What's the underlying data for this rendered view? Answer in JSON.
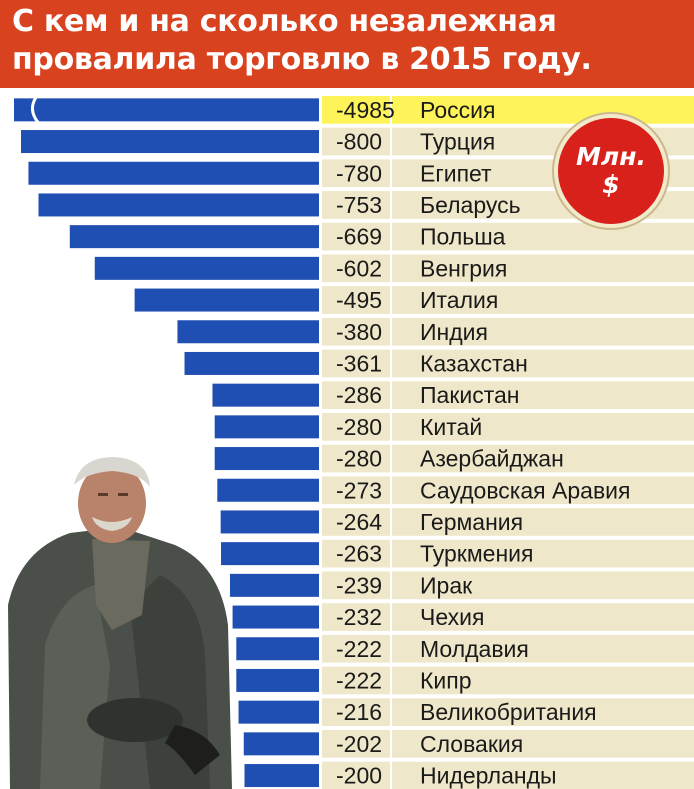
{
  "title": {
    "line1": "С кем и на сколько незалежная",
    "line2": "провалила торговлю в 2015 году."
  },
  "badge": {
    "unit_line1": "Млн.",
    "unit_line2": "$"
  },
  "colors": {
    "header": "#d8421f",
    "bar": "#1f4fb3",
    "highlight": "#fff35a",
    "stripe": "#efe7c9",
    "badge": "#d8211b"
  },
  "chart_data": {
    "type": "bar",
    "orientation": "horizontal",
    "title": "С кем и на сколько незалежная провалила торговлю в 2015 году.",
    "unit": "Млн. $",
    "categories": [
      "Россия",
      "Турция",
      "Египет",
      "Беларусь",
      "Польша",
      "Венгрия",
      "Италия",
      "Индия",
      "Казахстан",
      "Пакистан",
      "Китай",
      "Азербайджан",
      "Саудовская Аравия",
      "Германия",
      "Туркмения",
      "Ирак",
      "Чехия",
      "Молдавия",
      "Кипр",
      "Великобритания",
      "Словакия",
      "Нидерланды"
    ],
    "values": [
      -4985,
      -800,
      -780,
      -753,
      -669,
      -602,
      -495,
      -380,
      -361,
      -286,
      -280,
      -280,
      -273,
      -264,
      -263,
      -239,
      -232,
      -222,
      -222,
      -216,
      -202,
      -200
    ],
    "value_labels": [
      "-4985",
      "-800",
      "-780",
      "-753",
      "-669",
      "-602",
      "-495",
      "-380",
      "-361",
      "-286",
      "-280",
      "-280",
      "-273",
      "-264",
      "-263",
      "-239",
      "-232",
      "-222",
      "-222",
      "-216",
      "-202",
      "-200"
    ],
    "broken_bar": "Россия",
    "highlighted": "Россия"
  }
}
